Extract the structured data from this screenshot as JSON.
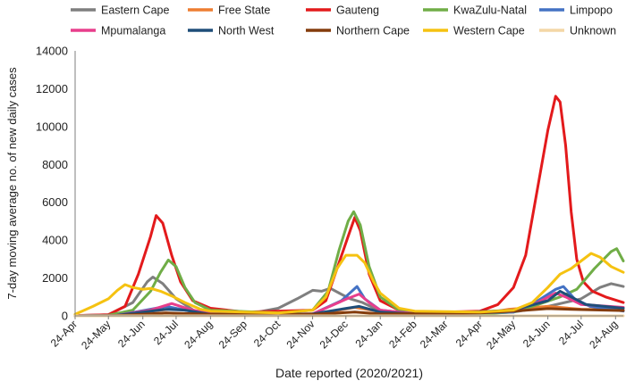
{
  "chart_data": {
    "type": "line",
    "title": "",
    "xlabel": "Date reported (2020/2021)",
    "ylabel": "7-day moving average no. of new daily cases",
    "ylim": [
      0,
      14000
    ],
    "yticks": [
      0,
      2000,
      4000,
      6000,
      8000,
      10000,
      12000,
      14000
    ],
    "ytick_labels": [
      "0",
      "2000",
      "4000",
      "6000",
      "8000",
      "10000",
      "12000",
      "14000"
    ],
    "x_start": "2020-04-24",
    "x_end": "2021-08-31",
    "xtick_labels": [
      "24-Apr",
      "24-May",
      "24-Jun",
      "24-Jul",
      "24-Aug",
      "24-Sep",
      "24-Oct",
      "24-Nov",
      "24-Dec",
      "24-Jan",
      "24-Feb",
      "24-Mar",
      "24-Apr",
      "24-May",
      "24-Jun",
      "24-Jul",
      "24-Aug"
    ],
    "xtick_dates": [
      "2020-04-24",
      "2020-05-24",
      "2020-06-24",
      "2020-07-24",
      "2020-08-24",
      "2020-09-24",
      "2020-10-24",
      "2020-11-24",
      "2020-12-24",
      "2021-01-24",
      "2021-02-24",
      "2021-03-24",
      "2021-04-24",
      "2021-05-24",
      "2021-06-24",
      "2021-07-24",
      "2021-08-24"
    ],
    "grid": false,
    "legend_position": "top",
    "series": [
      {
        "name": "Eastern Cape",
        "color": "#7f7f7f",
        "points": [
          [
            "2020-04-24",
            10
          ],
          [
            "2020-05-24",
            60
          ],
          [
            "2020-06-15",
            700
          ],
          [
            "2020-06-28",
            1800
          ],
          [
            "2020-07-03",
            2050
          ],
          [
            "2020-07-12",
            1700
          ],
          [
            "2020-07-24",
            900
          ],
          [
            "2020-08-10",
            250
          ],
          [
            "2020-08-24",
            120
          ],
          [
            "2020-10-01",
            150
          ],
          [
            "2020-10-24",
            400
          ],
          [
            "2020-11-10",
            900
          ],
          [
            "2020-11-24",
            1350
          ],
          [
            "2020-12-02",
            1300
          ],
          [
            "2020-12-10",
            1450
          ],
          [
            "2020-12-18",
            1200
          ],
          [
            "2020-12-28",
            900
          ],
          [
            "2021-01-08",
            700
          ],
          [
            "2021-01-24",
            250
          ],
          [
            "2021-02-24",
            100
          ],
          [
            "2021-04-24",
            120
          ],
          [
            "2021-05-24",
            200
          ],
          [
            "2021-06-24",
            500
          ],
          [
            "2021-07-24",
            900
          ],
          [
            "2021-08-10",
            1500
          ],
          [
            "2021-08-20",
            1700
          ],
          [
            "2021-08-31",
            1550
          ]
        ]
      },
      {
        "name": "Free State",
        "color": "#ed7d31",
        "points": [
          [
            "2020-04-24",
            0
          ],
          [
            "2020-06-01",
            50
          ],
          [
            "2020-07-10",
            300
          ],
          [
            "2020-07-24",
            380
          ],
          [
            "2020-08-24",
            120
          ],
          [
            "2020-10-24",
            80
          ],
          [
            "2020-12-01",
            120
          ],
          [
            "2021-01-01",
            450
          ],
          [
            "2021-01-24",
            220
          ],
          [
            "2021-03-01",
            60
          ],
          [
            "2021-04-24",
            100
          ],
          [
            "2021-05-20",
            350
          ],
          [
            "2021-06-24",
            500
          ],
          [
            "2021-07-24",
            350
          ],
          [
            "2021-08-31",
            300
          ]
        ]
      },
      {
        "name": "Gauteng",
        "color": "#e31a1c",
        "points": [
          [
            "2020-04-24",
            20
          ],
          [
            "2020-05-24",
            60
          ],
          [
            "2020-06-08",
            500
          ],
          [
            "2020-06-20",
            2200
          ],
          [
            "2020-07-01",
            4200
          ],
          [
            "2020-07-06",
            5300
          ],
          [
            "2020-07-12",
            4900
          ],
          [
            "2020-07-20",
            3200
          ],
          [
            "2020-07-28",
            1800
          ],
          [
            "2020-08-08",
            800
          ],
          [
            "2020-08-24",
            400
          ],
          [
            "2020-09-24",
            200
          ],
          [
            "2020-10-24",
            250
          ],
          [
            "2020-11-24",
            300
          ],
          [
            "2020-12-06",
            800
          ],
          [
            "2020-12-16",
            2500
          ],
          [
            "2020-12-26",
            4200
          ],
          [
            "2021-01-01",
            5200
          ],
          [
            "2021-01-06",
            4500
          ],
          [
            "2021-01-14",
            2200
          ],
          [
            "2021-01-24",
            800
          ],
          [
            "2021-02-10",
            300
          ],
          [
            "2021-02-24",
            200
          ],
          [
            "2021-03-24",
            200
          ],
          [
            "2021-04-24",
            250
          ],
          [
            "2021-05-10",
            600
          ],
          [
            "2021-05-24",
            1500
          ],
          [
            "2021-06-04",
            3200
          ],
          [
            "2021-06-14",
            6500
          ],
          [
            "2021-06-24",
            9800
          ],
          [
            "2021-07-01",
            11600
          ],
          [
            "2021-07-05",
            11300
          ],
          [
            "2021-07-10",
            9000
          ],
          [
            "2021-07-15",
            5500
          ],
          [
            "2021-07-20",
            3000
          ],
          [
            "2021-07-26",
            1800
          ],
          [
            "2021-08-03",
            1300
          ],
          [
            "2021-08-15",
            1000
          ],
          [
            "2021-08-31",
            700
          ]
        ]
      },
      {
        "name": "KwaZulu-Natal",
        "color": "#70ad47",
        "points": [
          [
            "2020-04-24",
            0
          ],
          [
            "2020-05-24",
            30
          ],
          [
            "2020-06-15",
            300
          ],
          [
            "2020-07-01",
            1300
          ],
          [
            "2020-07-10",
            2300
          ],
          [
            "2020-07-17",
            2950
          ],
          [
            "2020-07-24",
            2600
          ],
          [
            "2020-08-01",
            1500
          ],
          [
            "2020-08-10",
            700
          ],
          [
            "2020-08-24",
            300
          ],
          [
            "2020-10-24",
            150
          ],
          [
            "2020-11-24",
            300
          ],
          [
            "2020-12-08",
            1300
          ],
          [
            "2020-12-18",
            3500
          ],
          [
            "2020-12-26",
            5000
          ],
          [
            "2020-12-31",
            5500
          ],
          [
            "2021-01-06",
            4800
          ],
          [
            "2021-01-14",
            2600
          ],
          [
            "2021-01-24",
            1000
          ],
          [
            "2021-02-10",
            300
          ],
          [
            "2021-03-24",
            100
          ],
          [
            "2021-04-24",
            100
          ],
          [
            "2021-05-24",
            200
          ],
          [
            "2021-06-15",
            600
          ],
          [
            "2021-07-05",
            1000
          ],
          [
            "2021-07-20",
            1400
          ],
          [
            "2021-08-05",
            2500
          ],
          [
            "2021-08-20",
            3400
          ],
          [
            "2021-08-25",
            3550
          ],
          [
            "2021-08-31",
            2900
          ]
        ]
      },
      {
        "name": "Limpopo",
        "color": "#4472c4",
        "points": [
          [
            "2020-04-24",
            0
          ],
          [
            "2020-06-01",
            30
          ],
          [
            "2020-07-01",
            350
          ],
          [
            "2020-07-15",
            500
          ],
          [
            "2020-08-01",
            300
          ],
          [
            "2020-08-24",
            80
          ],
          [
            "2020-11-24",
            100
          ],
          [
            "2020-12-20",
            800
          ],
          [
            "2021-01-03",
            1550
          ],
          [
            "2021-01-10",
            900
          ],
          [
            "2021-01-24",
            300
          ],
          [
            "2021-03-01",
            80
          ],
          [
            "2021-05-24",
            200
          ],
          [
            "2021-06-15",
            800
          ],
          [
            "2021-07-01",
            1400
          ],
          [
            "2021-07-08",
            1550
          ],
          [
            "2021-07-18",
            900
          ],
          [
            "2021-08-01",
            500
          ],
          [
            "2021-08-31",
            250
          ]
        ]
      },
      {
        "name": "Mpumalanga",
        "color": "#e83e8c",
        "points": [
          [
            "2020-04-24",
            0
          ],
          [
            "2020-06-01",
            30
          ],
          [
            "2020-07-01",
            300
          ],
          [
            "2020-07-20",
            650
          ],
          [
            "2020-08-05",
            350
          ],
          [
            "2020-08-24",
            100
          ],
          [
            "2020-11-24",
            100
          ],
          [
            "2020-12-25",
            900
          ],
          [
            "2021-01-05",
            1150
          ],
          [
            "2021-01-14",
            700
          ],
          [
            "2021-01-24",
            300
          ],
          [
            "2021-03-01",
            80
          ],
          [
            "2021-05-24",
            250
          ],
          [
            "2021-06-15",
            700
          ],
          [
            "2021-07-01",
            1200
          ],
          [
            "2021-07-10",
            1000
          ],
          [
            "2021-07-24",
            600
          ],
          [
            "2021-08-31",
            450
          ]
        ]
      },
      {
        "name": "North West",
        "color": "#1f4e79",
        "points": [
          [
            "2020-04-24",
            0
          ],
          [
            "2020-06-01",
            30
          ],
          [
            "2020-07-01",
            250
          ],
          [
            "2020-07-15",
            350
          ],
          [
            "2020-08-01",
            300
          ],
          [
            "2020-08-24",
            80
          ],
          [
            "2020-11-24",
            100
          ],
          [
            "2020-12-25",
            400
          ],
          [
            "2021-01-05",
            500
          ],
          [
            "2021-01-24",
            200
          ],
          [
            "2021-03-01",
            80
          ],
          [
            "2021-05-24",
            300
          ],
          [
            "2021-06-24",
            800
          ],
          [
            "2021-07-05",
            1300
          ],
          [
            "2021-07-15",
            1000
          ],
          [
            "2021-07-28",
            600
          ],
          [
            "2021-08-31",
            400
          ]
        ]
      },
      {
        "name": "Northern Cape",
        "color": "#843c0c",
        "points": [
          [
            "2020-04-24",
            0
          ],
          [
            "2020-06-01",
            20
          ],
          [
            "2020-07-15",
            150
          ],
          [
            "2020-08-24",
            80
          ],
          [
            "2020-11-24",
            80
          ],
          [
            "2021-01-01",
            200
          ],
          [
            "2021-01-24",
            100
          ],
          [
            "2021-04-24",
            150
          ],
          [
            "2021-05-24",
            250
          ],
          [
            "2021-06-24",
            380
          ],
          [
            "2021-07-24",
            330
          ],
          [
            "2021-08-31",
            280
          ]
        ]
      },
      {
        "name": "Western Cape",
        "color": "#f5c211",
        "points": [
          [
            "2020-04-24",
            80
          ],
          [
            "2020-05-10",
            500
          ],
          [
            "2020-05-24",
            900
          ],
          [
            "2020-06-01",
            1350
          ],
          [
            "2020-06-08",
            1650
          ],
          [
            "2020-06-15",
            1500
          ],
          [
            "2020-06-24",
            1400
          ],
          [
            "2020-07-01",
            1450
          ],
          [
            "2020-07-10",
            1300
          ],
          [
            "2020-07-20",
            1050
          ],
          [
            "2020-08-01",
            700
          ],
          [
            "2020-08-15",
            350
          ],
          [
            "2020-08-24",
            250
          ],
          [
            "2020-10-24",
            150
          ],
          [
            "2020-11-24",
            300
          ],
          [
            "2020-12-06",
            1000
          ],
          [
            "2020-12-16",
            2500
          ],
          [
            "2020-12-24",
            3200
          ],
          [
            "2021-01-03",
            3200
          ],
          [
            "2021-01-10",
            2800
          ],
          [
            "2021-01-18",
            1800
          ],
          [
            "2021-01-24",
            1200
          ],
          [
            "2021-02-10",
            400
          ],
          [
            "2021-02-24",
            250
          ],
          [
            "2021-04-24",
            200
          ],
          [
            "2021-05-24",
            300
          ],
          [
            "2021-06-10",
            700
          ],
          [
            "2021-06-24",
            1500
          ],
          [
            "2021-07-05",
            2200
          ],
          [
            "2021-07-15",
            2500
          ],
          [
            "2021-07-24",
            2900
          ],
          [
            "2021-08-02",
            3300
          ],
          [
            "2021-08-10",
            3100
          ],
          [
            "2021-08-20",
            2600
          ],
          [
            "2021-08-31",
            2300
          ]
        ]
      },
      {
        "name": "Unknown",
        "color": "#f4d7a6",
        "points": [
          [
            "2020-04-24",
            0
          ],
          [
            "2021-08-31",
            0
          ]
        ]
      }
    ]
  }
}
